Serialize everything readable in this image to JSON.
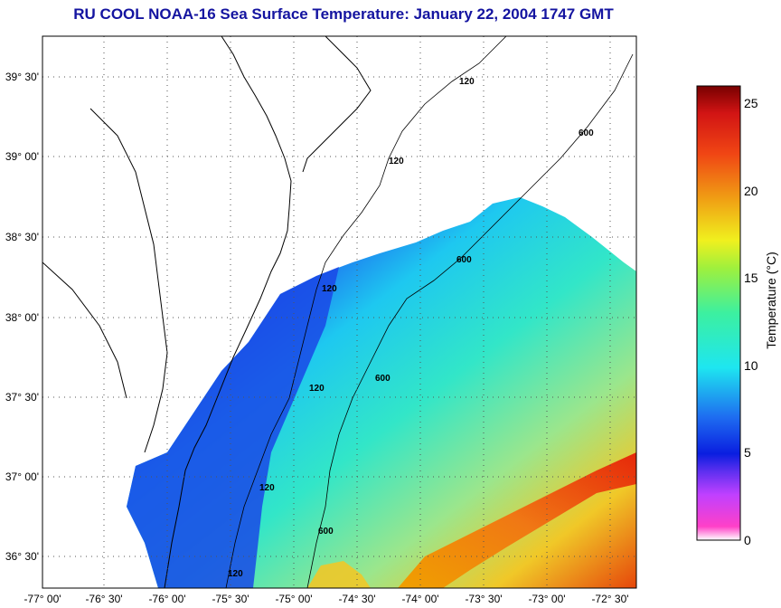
{
  "title": "RU COOL  NOAA-16  Sea Surface Temperature:  January 22, 2004 1747 GMT",
  "map": {
    "lon_ticks": [
      "-77° 00'",
      "-76° 30'",
      "-76° 00'",
      "-75° 30'",
      "-75° 00'",
      "-74° 30'",
      "-74° 00'",
      "-73° 30'",
      "-73° 00'",
      "-72° 30'"
    ],
    "lat_ticks": [
      "39° 30'",
      "39° 00'",
      "38° 30'",
      "38° 00'",
      "37° 30'",
      "37° 00'",
      "36° 30'"
    ],
    "lon_range": [
      -77.0,
      -72.0
    ],
    "lat_range": [
      36.17,
      39.75
    ],
    "grid": "dotted",
    "contour_labels": [
      "120",
      "120",
      "120",
      "120",
      "120",
      "120",
      "600",
      "600",
      "600",
      "600"
    ]
  },
  "colorbar": {
    "label": "Temperature (°C)",
    "ticks": [
      "25",
      "20",
      "15",
      "10",
      "5",
      "0"
    ],
    "range": [
      0,
      26
    ]
  },
  "colors": {
    "title": "#1414a0",
    "land": "#ffffff",
    "coastline": "#000000"
  }
}
